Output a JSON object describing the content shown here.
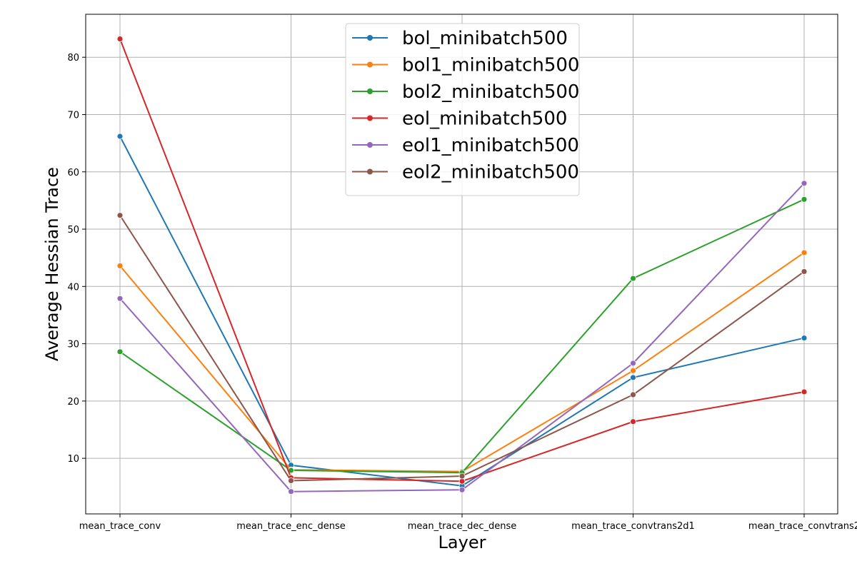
{
  "chart_data": {
    "type": "line",
    "xlabel": "Layer",
    "ylabel": "Average Hessian Trace",
    "categories": [
      "mean_trace_conv",
      "mean_trace_enc_dense",
      "mean_trace_dec_dense",
      "mean_trace_convtrans2d1",
      "mean_trace_convtrans2"
    ],
    "ylim": [
      0.3,
      87.5
    ],
    "yticks": [
      10,
      20,
      30,
      40,
      50,
      60,
      70,
      80
    ],
    "grid": true,
    "legend_position": "top-center",
    "series": [
      {
        "name": "bol_minibatch500",
        "color": "#1f77b4",
        "values": [
          66.2,
          8.8,
          5.2,
          24.1,
          31.0
        ]
      },
      {
        "name": "bol1_minibatch500",
        "color": "#ff7f0e",
        "values": [
          43.6,
          8.0,
          7.7,
          25.3,
          45.9
        ]
      },
      {
        "name": "bol2_minibatch500",
        "color": "#2ca02c",
        "values": [
          28.6,
          7.9,
          7.5,
          41.4,
          55.2
        ]
      },
      {
        "name": "eol_minibatch500",
        "color": "#d62728",
        "values": [
          83.2,
          6.6,
          6.0,
          16.4,
          21.6
        ]
      },
      {
        "name": "eol1_minibatch500",
        "color": "#9467bd",
        "values": [
          37.9,
          4.2,
          4.5,
          26.6,
          58.0
        ]
      },
      {
        "name": "eol2_minibatch500",
        "color": "#8c564b",
        "values": [
          52.4,
          6.1,
          6.9,
          21.1,
          42.6
        ]
      }
    ]
  }
}
